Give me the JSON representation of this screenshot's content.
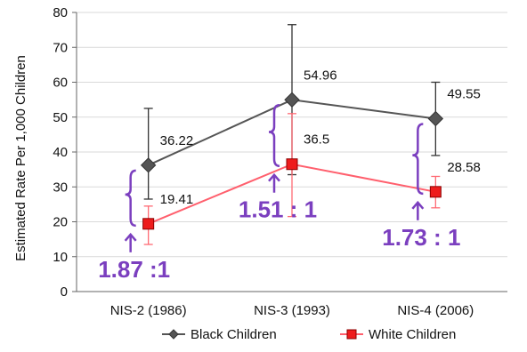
{
  "chart_data": {
    "type": "line",
    "categories": [
      "NIS-2 (1986)",
      "NIS-3 (1993)",
      "NIS-4 (2006)"
    ],
    "ylabel": "Estimated Rate Per  1,000 Children",
    "ylim": [
      0,
      80
    ],
    "yticks": [
      0,
      10,
      20,
      30,
      40,
      50,
      60,
      70,
      80
    ],
    "grid": true,
    "legend_position": "bottom",
    "series": [
      {
        "name": "Black Children",
        "color": "#555555",
        "marker": "diamond",
        "values": [
          36.22,
          54.96,
          49.55
        ],
        "labels": [
          "36.22",
          "54.96",
          "49.55"
        ],
        "error_low": [
          26.5,
          33.5,
          39.0
        ],
        "error_high": [
          52.5,
          76.5,
          60.0
        ]
      },
      {
        "name": "White Children",
        "color": "#ff5f6d",
        "marker": "square",
        "values": [
          19.41,
          36.5,
          28.58
        ],
        "labels": [
          "19.41",
          "36.5",
          "28.58"
        ],
        "error_low": [
          13.5,
          21.5,
          24.0
        ],
        "error_high": [
          24.5,
          51.0,
          33.0
        ]
      }
    ],
    "annotations": [
      {
        "text": "1.87 :1",
        "category": 0
      },
      {
        "text": "1.51 : 1",
        "category": 1
      },
      {
        "text": "1.73 : 1",
        "category": 2
      }
    ],
    "annotation_color": "#7b3fbf"
  }
}
